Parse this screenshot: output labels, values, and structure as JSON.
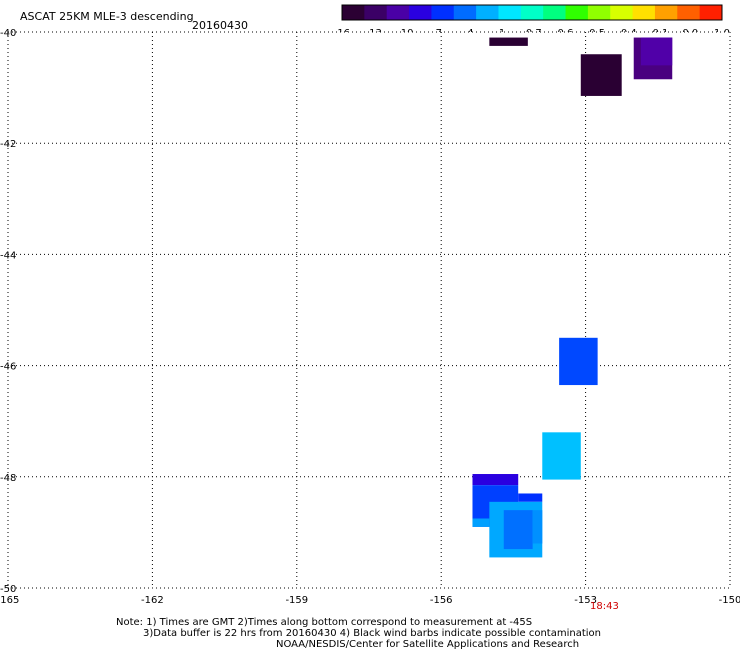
{
  "header": {
    "title": "ASCAT 25KM MLE-3 descending",
    "date": "20160430"
  },
  "colorbar": {
    "tick_labels": [
      "-16",
      "-13",
      "-10",
      "-7",
      "-4",
      "-1",
      "-0.7",
      "-0.6",
      "-0.5",
      "-0.4",
      "-0.1",
      "0.0",
      "1.0"
    ],
    "colors": [
      "#2b0033",
      "#3b0066",
      "#4a00a6",
      "#2a00e0",
      "#0030ff",
      "#006cff",
      "#00b0ff",
      "#00e6ff",
      "#00ffc8",
      "#00ff80",
      "#30ff00",
      "#90ff00",
      "#d8ff00",
      "#ffe000",
      "#ffa000",
      "#ff6000",
      "#ff2000"
    ]
  },
  "map": {
    "lon_range": [
      -165,
      -150
    ],
    "lat_range": [
      -50,
      -40
    ],
    "lon_ticks": [
      "-165",
      "-162",
      "-159",
      "-156",
      "-153",
      "-150"
    ],
    "lat_ticks": [
      "-40",
      "-42",
      "-44",
      "-46",
      "-48",
      "-50"
    ],
    "time_label": "18:43",
    "cells": [
      {
        "lon0": -155.0,
        "lon1": -154.2,
        "lat0": -40.25,
        "lat1": -40.1,
        "color": "#2a0033"
      },
      {
        "lon0": -153.1,
        "lon1": -152.25,
        "lat0": -41.15,
        "lat1": -40.4,
        "color": "#2a0033"
      },
      {
        "lon0": -152.0,
        "lon1": -151.2,
        "lat0": -40.85,
        "lat1": -40.1,
        "color": "#4a0080"
      },
      {
        "lon0": -151.85,
        "lon1": -151.2,
        "lat0": -40.6,
        "lat1": -40.1,
        "color": "#5000a8"
      },
      {
        "lon0": -153.55,
        "lon1": -152.75,
        "lat0": -46.35,
        "lat1": -45.5,
        "color": "#0048ff"
      },
      {
        "lon0": -153.9,
        "lon1": -153.1,
        "lat0": -48.05,
        "lat1": -47.2,
        "color": "#00c0ff"
      },
      {
        "lon0": -155.35,
        "lon1": -154.4,
        "lat0": -48.15,
        "lat1": -47.95,
        "color": "#2a00e0"
      },
      {
        "lon0": -155.35,
        "lon1": -154.4,
        "lat0": -48.9,
        "lat1": -48.15,
        "color": "#0040ff"
      },
      {
        "lon0": -155.0,
        "lon1": -154.4,
        "lat0": -48.75,
        "lat1": -48.45,
        "color": "#0030ff"
      },
      {
        "lon0": -154.4,
        "lon1": -153.9,
        "lat0": -48.45,
        "lat1": -48.3,
        "color": "#0030ff"
      },
      {
        "lon0": -155.35,
        "lon1": -155.0,
        "lat0": -48.9,
        "lat1": -48.75,
        "color": "#00a0ff"
      },
      {
        "lon0": -155.0,
        "lon1": -153.9,
        "lat0": -49.45,
        "lat1": -48.45,
        "color": "#00a8ff"
      },
      {
        "lon0": -154.7,
        "lon1": -154.1,
        "lat0": -49.3,
        "lat1": -48.6,
        "color": "#0070ff"
      },
      {
        "lon0": -154.1,
        "lon1": -153.9,
        "lat0": -49.2,
        "lat1": -48.6,
        "color": "#0090ff"
      }
    ]
  },
  "footer": {
    "line1": "Note: 1) Times are GMT 2)Times along bottom correspond to measurement at -45S",
    "line2": "3)Data buffer is 22 hrs from 20160430 4) Black wind barbs indicate possible contamination",
    "line3": "NOAA/NESDIS/Center for Satellite Applications and Research"
  }
}
